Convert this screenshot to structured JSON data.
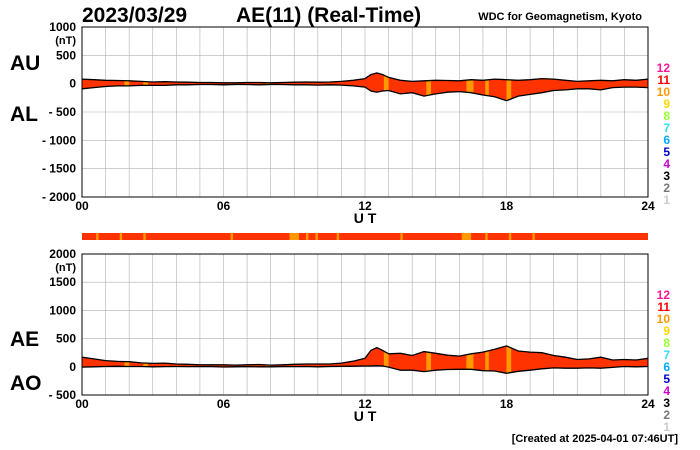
{
  "header": {
    "date": "2023/03/29",
    "title": "AE(11) (Real-Time)",
    "credit": "WDC for Geomagnetism, Kyoto"
  },
  "footer": {
    "created": "[Created at 2025-04-01 07:46UT]"
  },
  "colors": {
    "fill": "#ff3300",
    "outline": "#000000",
    "grid": "#b0b0b0",
    "strip_red": "#ff3300",
    "strip_orange": "#ff9900",
    "legend": [
      "#ff1493",
      "#ff0000",
      "#ff9900",
      "#ffd700",
      "#99ff33",
      "#33ddff",
      "#00aaff",
      "#0000cc",
      "#cc00cc",
      "#000000",
      "#777777",
      "#cccccc"
    ]
  },
  "legend_labels": [
    "12",
    "11",
    "10",
    "9",
    "8",
    "7",
    "6",
    "5",
    "4",
    "3",
    "2",
    "1"
  ],
  "chart_data": [
    {
      "type": "area",
      "side_labels": [
        "AU",
        "AL"
      ],
      "xlabel": "U T",
      "ylabel_unit": "(nT)",
      "xlim": [
        0,
        24
      ],
      "ylim": [
        -2000,
        1000
      ],
      "xticks": [
        "00",
        "06",
        "12",
        "18",
        "24"
      ],
      "yticks": [
        "1000",
        "500",
        "0",
        "- 500",
        "- 1000",
        "- 1500",
        "- 2000"
      ],
      "grid": true,
      "x": [
        0,
        0.5,
        1,
        1.5,
        2,
        2.5,
        3,
        3.5,
        4,
        4.5,
        5,
        5.5,
        6,
        6.5,
        7,
        7.5,
        8,
        8.5,
        9,
        9.5,
        10,
        10.5,
        11,
        11.5,
        12,
        12.25,
        12.5,
        12.75,
        13,
        13.5,
        14,
        14.5,
        15,
        15.5,
        16,
        16.5,
        17,
        17.5,
        18,
        18.5,
        19,
        19.5,
        20,
        20.5,
        21,
        21.5,
        22,
        22.5,
        23,
        23.5,
        24
      ],
      "series": [
        {
          "name": "AU",
          "values": [
            80,
            70,
            60,
            55,
            50,
            40,
            30,
            35,
            30,
            25,
            20,
            20,
            15,
            15,
            20,
            20,
            15,
            20,
            25,
            30,
            25,
            30,
            40,
            60,
            90,
            160,
            190,
            160,
            110,
            60,
            40,
            50,
            60,
            55,
            50,
            70,
            60,
            80,
            70,
            60,
            70,
            90,
            80,
            60,
            40,
            50,
            60,
            50,
            70,
            60,
            80
          ]
        },
        {
          "name": "AL",
          "values": [
            -90,
            -70,
            -50,
            -40,
            -40,
            -30,
            -30,
            -30,
            -20,
            -20,
            -15,
            -15,
            -20,
            -15,
            -15,
            -20,
            -15,
            -15,
            -20,
            -20,
            -25,
            -20,
            -25,
            -40,
            -60,
            -130,
            -150,
            -130,
            -120,
            -180,
            -160,
            -220,
            -180,
            -150,
            -140,
            -160,
            -200,
            -230,
            -300,
            -220,
            -190,
            -160,
            -120,
            -110,
            -90,
            -90,
            -110,
            -70,
            -60,
            -60,
            -70
          ]
        }
      ],
      "orange_bands": [
        [
          1.8,
          2.0
        ],
        [
          2.6,
          2.8
        ],
        [
          7.8,
          8.0
        ],
        [
          12.8,
          13.0
        ],
        [
          14.6,
          14.8
        ],
        [
          16.3,
          16.6
        ],
        [
          17.1,
          17.25
        ],
        [
          18.0,
          18.2
        ]
      ]
    },
    {
      "type": "area",
      "side_labels": [
        "AE",
        "AO"
      ],
      "xlabel": "U T",
      "ylabel_unit": "(nT)",
      "xlim": [
        0,
        24
      ],
      "ylim": [
        -500,
        2000
      ],
      "xticks": [
        "00",
        "06",
        "12",
        "18",
        "24"
      ],
      "yticks": [
        "2000",
        "1500",
        "1000",
        "500",
        "0",
        "- 500"
      ],
      "grid": true,
      "x": [
        0,
        0.5,
        1,
        1.5,
        2,
        2.5,
        3,
        3.5,
        4,
        4.5,
        5,
        5.5,
        6,
        6.5,
        7,
        7.5,
        8,
        8.5,
        9,
        9.5,
        10,
        10.5,
        11,
        11.5,
        12,
        12.25,
        12.5,
        12.75,
        13,
        13.5,
        14,
        14.5,
        15,
        15.5,
        16,
        16.5,
        17,
        17.5,
        18,
        18.5,
        19,
        19.5,
        20,
        20.5,
        21,
        21.5,
        22,
        22.5,
        23,
        23.5,
        24
      ],
      "series": [
        {
          "name": "AE",
          "values": [
            170,
            140,
            110,
            95,
            90,
            70,
            60,
            65,
            50,
            45,
            35,
            35,
            35,
            30,
            35,
            40,
            30,
            35,
            45,
            50,
            50,
            50,
            65,
            100,
            150,
            290,
            340,
            290,
            230,
            240,
            200,
            270,
            240,
            205,
            190,
            230,
            260,
            310,
            370,
            280,
            260,
            250,
            200,
            170,
            130,
            140,
            170,
            120,
            130,
            120,
            150
          ]
        },
        {
          "name": "AO",
          "values": [
            -5,
            0,
            5,
            8,
            5,
            5,
            0,
            3,
            5,
            3,
            3,
            3,
            -3,
            0,
            3,
            0,
            0,
            3,
            3,
            5,
            0,
            5,
            8,
            10,
            15,
            15,
            20,
            15,
            -5,
            -60,
            -60,
            -85,
            -60,
            -48,
            -45,
            -45,
            -70,
            -75,
            -115,
            -80,
            -60,
            -35,
            -20,
            -25,
            -25,
            -20,
            -25,
            -10,
            5,
            0,
            5
          ]
        }
      ],
      "orange_bands": [
        [
          1.8,
          2.0
        ],
        [
          2.6,
          2.8
        ],
        [
          7.8,
          8.0
        ],
        [
          12.8,
          13.0
        ],
        [
          14.6,
          14.8
        ],
        [
          16.3,
          16.6
        ],
        [
          17.1,
          17.25
        ],
        [
          18.0,
          18.2
        ]
      ]
    }
  ],
  "status_strip": {
    "xlim": [
      0,
      24
    ],
    "orange_bands": [
      [
        0.6,
        0.7
      ],
      [
        1.6,
        1.7
      ],
      [
        2.6,
        2.7
      ],
      [
        6.3,
        6.4
      ],
      [
        8.8,
        9.2
      ],
      [
        9.5,
        9.6
      ],
      [
        9.9,
        10.0
      ],
      [
        10.8,
        10.9
      ],
      [
        13.5,
        13.6
      ],
      [
        16.1,
        16.5
      ],
      [
        17.1,
        17.2
      ],
      [
        18.1,
        18.2
      ],
      [
        19.1,
        19.2
      ]
    ]
  }
}
